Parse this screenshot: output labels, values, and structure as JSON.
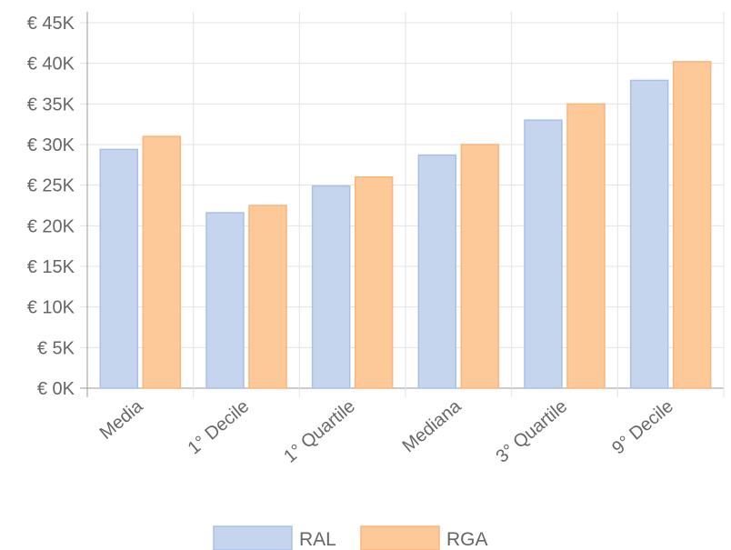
{
  "chart_data": {
    "type": "bar",
    "categories": [
      "Media",
      "1° Decile",
      "1° Quartile",
      "Mediana",
      "3° Quartile",
      "9° Decile"
    ],
    "series": [
      {
        "name": "RAL",
        "values": [
          29400,
          21600,
          24900,
          28700,
          33000,
          37900
        ],
        "color": "#c6d5ee",
        "border": "#a9c0e6"
      },
      {
        "name": "RGA",
        "values": [
          31000,
          22500,
          26000,
          30000,
          35000,
          40200
        ],
        "color": "#fdc999",
        "border": "#fab57a"
      }
    ],
    "ylim": [
      0,
      45000
    ],
    "yticks": [
      0,
      5000,
      10000,
      15000,
      20000,
      25000,
      30000,
      35000,
      40000,
      45000
    ],
    "ytick_labels": [
      "€ 0K",
      "€ 5K",
      "€ 10K",
      "€ 15K",
      "€ 20K",
      "€ 25K",
      "€ 30K",
      "€ 35K",
      "€ 40K",
      "€ 45K"
    ],
    "grid": true,
    "legend": "bottom",
    "title": "",
    "xlabel": "",
    "ylabel": ""
  }
}
